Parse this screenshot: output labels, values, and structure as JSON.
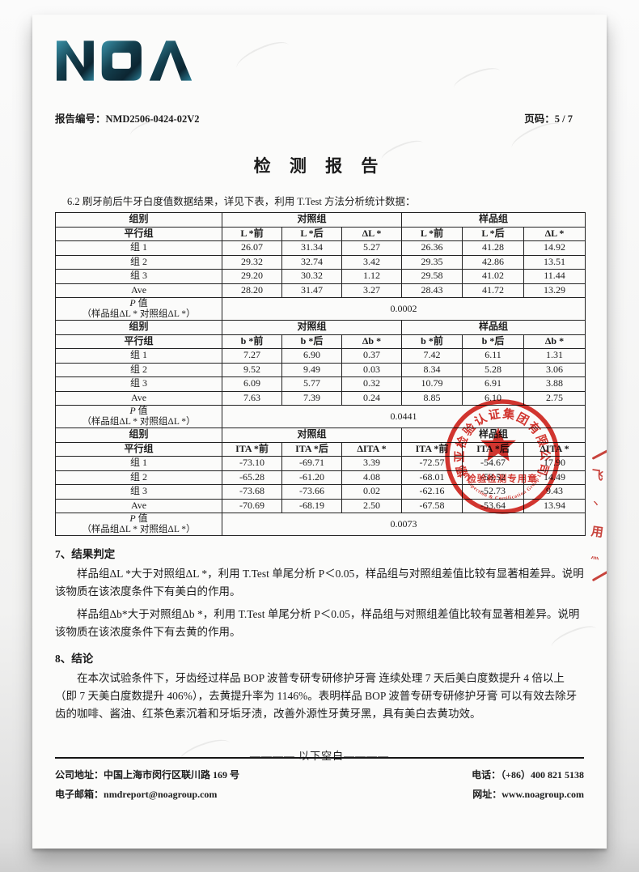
{
  "header": {
    "logo_alt": "NOA",
    "report_no_label": "报告编号：",
    "report_no": "NMD2506-0424-02V2",
    "page_label": "页码：",
    "page_value": "5 / 7",
    "title": "检 测 报 告"
  },
  "intro": "6.2 刷牙前后牛牙白度值数据结果，详见下表，利用 T.Test 方法分析统计数据：",
  "tables": [
    {
      "group_col": "组别",
      "control_label": "对照组",
      "sample_label": "样品组",
      "sub": [
        "平行组",
        "L *前",
        "L *后",
        "ΔL *",
        "L *前",
        "L *后",
        "ΔL *"
      ],
      "rows": [
        [
          "组 1",
          "26.07",
          "31.34",
          "5.27",
          "26.36",
          "41.28",
          "14.92"
        ],
        [
          "组 2",
          "29.32",
          "32.74",
          "3.42",
          "29.35",
          "42.86",
          "13.51"
        ],
        [
          "组 3",
          "29.20",
          "30.32",
          "1.12",
          "29.58",
          "41.02",
          "11.44"
        ],
        [
          "Ave",
          "28.20",
          "31.47",
          "3.27",
          "28.43",
          "41.72",
          "13.29"
        ]
      ],
      "p_italic": "P",
      "p_word": " 值",
      "p_sub": "（样品组ΔL * 对照组ΔL *）",
      "p_value": "0.0002"
    },
    {
      "group_col": "组别",
      "control_label": "对照组",
      "sample_label": "样品组",
      "sub": [
        "平行组",
        "b *前",
        "b *后",
        "Δb *",
        "b *前",
        "b *后",
        "Δb *"
      ],
      "rows": [
        [
          "组 1",
          "7.27",
          "6.90",
          "0.37",
          "7.42",
          "6.11",
          "1.31"
        ],
        [
          "组 2",
          "9.52",
          "9.49",
          "0.03",
          "8.34",
          "5.28",
          "3.06"
        ],
        [
          "组 3",
          "6.09",
          "5.77",
          "0.32",
          "10.79",
          "6.91",
          "3.88"
        ],
        [
          "Ave",
          "7.63",
          "7.39",
          "0.24",
          "8.85",
          "6.10",
          "2.75"
        ]
      ],
      "p_italic": "P",
      "p_word": " 值",
      "p_sub": "（样品组ΔL * 对照组ΔL *）",
      "p_value": "0.0441"
    },
    {
      "group_col": "组别",
      "control_label": "对照组",
      "sample_label": "样品组",
      "sub": [
        "平行组",
        "ITA *前",
        "ITA *后",
        "ΔITA *",
        "ITA *前",
        "ITA *后",
        "ΔITA *"
      ],
      "rows": [
        [
          "组 1",
          "-73.10",
          "-69.71",
          "3.39",
          "-72.57",
          "-54.67",
          "17.90"
        ],
        [
          "组 2",
          "-65.28",
          "-61.20",
          "4.08",
          "-68.01",
          "-53.52",
          "14.49"
        ],
        [
          "组 3",
          "-73.68",
          "-73.66",
          "0.02",
          "-62.16",
          "-52.73",
          "9.43"
        ],
        [
          "Ave",
          "-70.69",
          "-68.19",
          "2.50",
          "-67.58",
          "-53.64",
          "13.94"
        ]
      ],
      "p_italic": "P",
      "p_word": " 值",
      "p_sub": "（样品组ΔL * 对照组ΔL *）",
      "p_value": "0.0073"
    }
  ],
  "sections": {
    "judgement": {
      "heading": "7、结果判定",
      "p1": "样品组ΔL *大于对照组ΔL *，利用 T.Test 单尾分析 P＜0.05，样品组与对照组差值比较有显著相差异。说明该物质在该浓度条件下有美白的作用。",
      "p2": "样品组Δb*大于对照组Δb *，利用 T.Test 单尾分析 P＜0.05，样品组与对照组差值比较有显著相差异。说明该物质在该浓度条件下有去黄的作用。"
    },
    "conclusion": {
      "heading": "8、结论",
      "p1": "在本次试验条件下，牙齿经过样品 BOP 波普专研专研修护牙膏 连续处理 7 天后美白度数提升 4 倍以上（即 7 天美白度数提升 406%），去黄提升率为 1146%。表明样品 BOP 波普专研专研修护牙膏 可以有效去除牙齿的咖啡、酱油、红茶色素沉着和牙垢牙渍，改善外源性牙黄牙黑，具有美白去黄功效。"
    }
  },
  "blank_note": "———— 以下空白————",
  "stamp": {
    "ring_text": "挪亚检验认证集团有限公司",
    "ring_text_en": "NOA Inspection & Certification Group Ltd.",
    "center_label": "检验检测专用章",
    "color": "#d2251e"
  },
  "seam_stamp": {
    "fragments": [
      "飞",
      "丶",
      "用",
      "灬"
    ]
  },
  "footer": {
    "address_label": "公司地址：",
    "address": "中国上海市闵行区联川路 169 号",
    "email_label": "电子邮箱：",
    "email": "nmdreport@noagroup.com",
    "phone_label": "电话：",
    "phone": "（+86）400 821 5138",
    "web_label": "网址：",
    "web": "www.noagroup.com"
  },
  "colors": {
    "stamp_red": "#d2251e",
    "logo_dark": "#0c1e28",
    "logo_teal": "#2f87a0"
  }
}
